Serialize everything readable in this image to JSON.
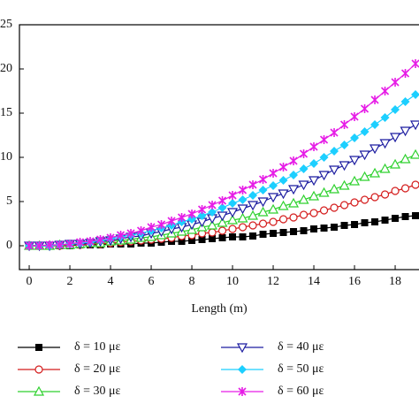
{
  "chart_data": {
    "type": "line",
    "x_label": "Length (m)",
    "xlim": [
      -0.48,
      19.2
    ],
    "ylim": [
      -2.7,
      25
    ],
    "xticks": [
      0,
      2,
      4,
      6,
      8,
      10,
      12,
      14,
      16,
      18
    ],
    "yticks": [
      0,
      5,
      10,
      15,
      20,
      25
    ],
    "x": [
      0,
      0.5,
      1,
      1.5,
      2,
      2.5,
      3,
      3.5,
      4,
      4.5,
      5,
      5.5,
      6,
      6.5,
      7,
      7.5,
      8,
      8.5,
      9,
      9.5,
      10,
      10.5,
      11,
      11.5,
      12,
      12.5,
      13,
      13.5,
      14,
      14.5,
      15,
      15.5,
      16,
      16.5,
      17,
      17.5,
      18,
      18.5,
      19
    ],
    "series": [
      {
        "name": "δ = 10 με",
        "color": "#000000",
        "marker": "square",
        "values": [
          0,
          0.0,
          0.0,
          0.0,
          0.0,
          0.1,
          0.1,
          0.1,
          0.2,
          0.2,
          0.2,
          0.3,
          0.3,
          0.4,
          0.5,
          0.5,
          0.6,
          0.7,
          0.8,
          0.9,
          1.0,
          1.0,
          1.1,
          1.3,
          1.4,
          1.5,
          1.6,
          1.7,
          1.9,
          2.0,
          2.1,
          2.3,
          2.4,
          2.6,
          2.7,
          2.9,
          3.1,
          3.3,
          3.4
        ]
      },
      {
        "name": "δ = 20 με",
        "color": "#d41c1c",
        "marker": "circle",
        "values": [
          0,
          0.0,
          0.0,
          0.0,
          0.1,
          0.1,
          0.2,
          0.2,
          0.3,
          0.4,
          0.5,
          0.6,
          0.7,
          0.8,
          0.9,
          1.1,
          1.2,
          1.4,
          1.5,
          1.7,
          1.9,
          2.1,
          2.3,
          2.5,
          2.7,
          3.0,
          3.2,
          3.5,
          3.7,
          4.0,
          4.3,
          4.6,
          4.9,
          5.2,
          5.5,
          5.8,
          6.2,
          6.5,
          6.9
        ]
      },
      {
        "name": "δ = 30 με",
        "color": "#2ed12e",
        "marker": "triangle-up",
        "values": [
          0,
          0.0,
          0.0,
          0.1,
          0.1,
          0.2,
          0.3,
          0.3,
          0.5,
          0.6,
          0.7,
          0.9,
          1.0,
          1.2,
          1.4,
          1.6,
          1.8,
          2.1,
          2.3,
          2.6,
          2.9,
          3.1,
          3.4,
          3.8,
          4.1,
          4.5,
          4.8,
          5.2,
          5.6,
          6.0,
          6.4,
          6.8,
          7.3,
          7.8,
          8.2,
          8.7,
          9.2,
          9.8,
          10.3
        ]
      },
      {
        "name": "δ = 40 με",
        "color": "#1c1ca0",
        "marker": "triangle-down",
        "values": [
          0,
          0.0,
          0.0,
          0.1,
          0.2,
          0.2,
          0.3,
          0.5,
          0.6,
          0.8,
          1.0,
          1.1,
          1.4,
          1.6,
          1.9,
          2.1,
          2.4,
          2.7,
          3.1,
          3.4,
          3.8,
          4.2,
          4.6,
          5.0,
          5.5,
          5.9,
          6.4,
          6.9,
          7.4,
          8.0,
          8.6,
          9.1,
          9.7,
          10.3,
          11.0,
          11.6,
          12.3,
          13.0,
          13.7
        ]
      },
      {
        "name": "δ = 50 με",
        "color": "#1ccfff",
        "marker": "diamond",
        "values": [
          0,
          0.0,
          0.0,
          0.1,
          0.2,
          0.3,
          0.4,
          0.6,
          0.8,
          1.0,
          1.2,
          1.4,
          1.7,
          2.0,
          2.3,
          2.7,
          3.0,
          3.4,
          3.8,
          4.3,
          4.8,
          5.2,
          5.7,
          6.3,
          6.8,
          7.4,
          8.0,
          8.7,
          9.3,
          10.0,
          10.7,
          11.4,
          12.2,
          12.9,
          13.7,
          14.5,
          15.4,
          16.3,
          17.1
        ]
      },
      {
        "name": "δ = 60 με",
        "color": "#e61ce6",
        "marker": "star",
        "values": [
          0,
          0.0,
          0.1,
          0.1,
          0.2,
          0.4,
          0.5,
          0.7,
          0.9,
          1.2,
          1.4,
          1.7,
          2.1,
          2.4,
          2.8,
          3.2,
          3.6,
          4.1,
          4.6,
          5.1,
          5.7,
          6.3,
          6.9,
          7.5,
          8.2,
          8.9,
          9.6,
          10.4,
          11.2,
          12.0,
          12.8,
          13.7,
          14.6,
          15.5,
          16.5,
          17.5,
          18.5,
          19.5,
          20.6
        ]
      }
    ]
  }
}
